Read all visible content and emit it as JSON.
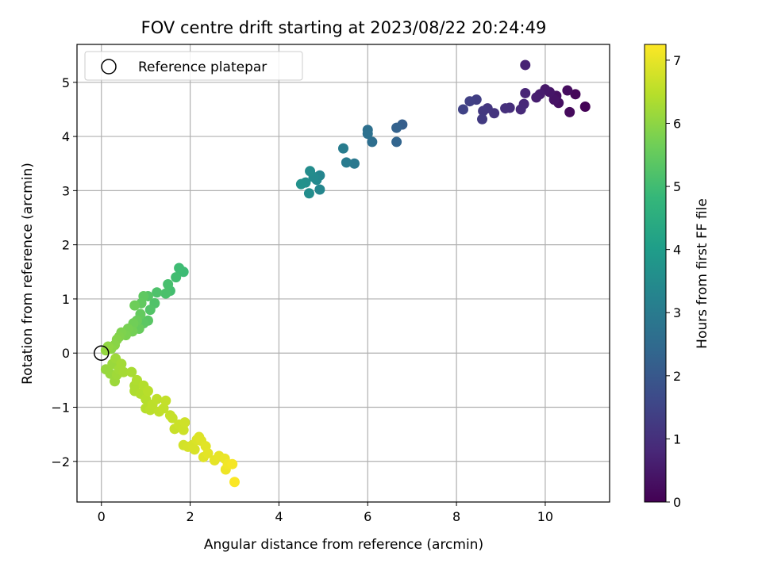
{
  "chart_data": {
    "type": "scatter",
    "title": "FOV centre drift starting at 2023/08/22 20:24:49",
    "xlabel": "Angular distance from reference (arcmin)",
    "ylabel": "Rotation from reference (arcmin)",
    "xlim": [
      -0.55,
      11.45
    ],
    "ylim": [
      -2.75,
      5.7
    ],
    "xticks": [
      0,
      2,
      4,
      6,
      8,
      10
    ],
    "yticks": [
      -2,
      -1,
      0,
      1,
      2,
      3,
      4,
      5
    ],
    "grid": true,
    "legend": {
      "position": "top-left",
      "entries": [
        "Reference platepar"
      ]
    },
    "reference_point": {
      "x": 0,
      "y": 0,
      "label": "Reference platepar"
    },
    "colorbar": {
      "label": "Hours from first FF file",
      "range": [
        0,
        7.25
      ],
      "ticks": [
        0,
        1,
        2,
        3,
        4,
        5,
        6,
        7
      ],
      "colormap": "viridis",
      "colors": [
        "#440154",
        "#482878",
        "#3e4989",
        "#31688e",
        "#26828e",
        "#1f9e89",
        "#35b779",
        "#6ece58",
        "#b5de2b",
        "#fde725"
      ]
    },
    "points": [
      {
        "x": 10.9,
        "y": 4.55,
        "h": 0.05
      },
      {
        "x": 10.68,
        "y": 4.78,
        "h": 0.12
      },
      {
        "x": 10.55,
        "y": 4.45,
        "h": 0.18
      },
      {
        "x": 10.5,
        "y": 4.85,
        "h": 0.22
      },
      {
        "x": 10.3,
        "y": 4.62,
        "h": 0.28
      },
      {
        "x": 10.25,
        "y": 4.75,
        "h": 0.32
      },
      {
        "x": 10.2,
        "y": 4.68,
        "h": 0.38
      },
      {
        "x": 10.1,
        "y": 4.82,
        "h": 0.42
      },
      {
        "x": 10.0,
        "y": 4.87,
        "h": 0.48
      },
      {
        "x": 9.88,
        "y": 4.78,
        "h": 0.55
      },
      {
        "x": 9.8,
        "y": 4.72,
        "h": 0.6
      },
      {
        "x": 9.55,
        "y": 5.32,
        "h": 0.7
      },
      {
        "x": 9.55,
        "y": 4.8,
        "h": 0.75
      },
      {
        "x": 9.52,
        "y": 4.6,
        "h": 0.8
      },
      {
        "x": 9.45,
        "y": 4.5,
        "h": 0.85
      },
      {
        "x": 9.2,
        "y": 4.53,
        "h": 0.95
      },
      {
        "x": 9.1,
        "y": 4.52,
        "h": 1.0
      },
      {
        "x": 8.85,
        "y": 4.43,
        "h": 1.1
      },
      {
        "x": 8.7,
        "y": 4.52,
        "h": 1.15
      },
      {
        "x": 8.6,
        "y": 4.47,
        "h": 1.2
      },
      {
        "x": 8.58,
        "y": 4.32,
        "h": 1.25
      },
      {
        "x": 8.45,
        "y": 4.68,
        "h": 1.35
      },
      {
        "x": 8.3,
        "y": 4.65,
        "h": 1.4
      },
      {
        "x": 8.15,
        "y": 4.5,
        "h": 1.45
      },
      {
        "x": 6.78,
        "y": 4.22,
        "h": 2.15
      },
      {
        "x": 6.65,
        "y": 4.16,
        "h": 2.25
      },
      {
        "x": 6.65,
        "y": 3.9,
        "h": 2.35
      },
      {
        "x": 6.1,
        "y": 3.9,
        "h": 2.6
      },
      {
        "x": 6.0,
        "y": 4.12,
        "h": 2.65
      },
      {
        "x": 6.0,
        "y": 4.05,
        "h": 2.7
      },
      {
        "x": 5.7,
        "y": 3.5,
        "h": 2.9
      },
      {
        "x": 5.52,
        "y": 3.52,
        "h": 3.0
      },
      {
        "x": 5.45,
        "y": 3.78,
        "h": 3.05
      },
      {
        "x": 4.92,
        "y": 3.28,
        "h": 3.3
      },
      {
        "x": 4.92,
        "y": 3.02,
        "h": 3.35
      },
      {
        "x": 4.85,
        "y": 3.2,
        "h": 3.4
      },
      {
        "x": 4.78,
        "y": 3.25,
        "h": 3.45
      },
      {
        "x": 4.7,
        "y": 3.36,
        "h": 3.5
      },
      {
        "x": 4.68,
        "y": 2.95,
        "h": 3.55
      },
      {
        "x": 4.6,
        "y": 3.15,
        "h": 3.6
      },
      {
        "x": 4.5,
        "y": 3.12,
        "h": 3.65
      },
      {
        "x": 1.85,
        "y": 1.5,
        "h": 4.95
      },
      {
        "x": 1.75,
        "y": 1.57,
        "h": 4.98
      },
      {
        "x": 1.68,
        "y": 1.4,
        "h": 5.02
      },
      {
        "x": 1.55,
        "y": 1.15,
        "h": 5.06
      },
      {
        "x": 1.5,
        "y": 1.27,
        "h": 5.1
      },
      {
        "x": 1.45,
        "y": 1.1,
        "h": 5.14
      },
      {
        "x": 1.25,
        "y": 1.12,
        "h": 5.18
      },
      {
        "x": 1.2,
        "y": 0.92,
        "h": 5.22
      },
      {
        "x": 1.1,
        "y": 0.8,
        "h": 5.26
      },
      {
        "x": 1.05,
        "y": 1.05,
        "h": 5.3
      },
      {
        "x": 1.05,
        "y": 0.6,
        "h": 5.34
      },
      {
        "x": 0.95,
        "y": 0.55,
        "h": 5.38
      },
      {
        "x": 0.95,
        "y": 1.05,
        "h": 5.42
      },
      {
        "x": 0.9,
        "y": 0.92,
        "h": 5.46
      },
      {
        "x": 0.88,
        "y": 0.72,
        "h": 5.5
      },
      {
        "x": 0.85,
        "y": 0.45,
        "h": 5.54
      },
      {
        "x": 0.8,
        "y": 0.6,
        "h": 5.58
      },
      {
        "x": 0.75,
        "y": 0.88,
        "h": 5.62
      },
      {
        "x": 0.72,
        "y": 0.55,
        "h": 5.66
      },
      {
        "x": 0.7,
        "y": 0.4,
        "h": 5.7
      },
      {
        "x": 0.6,
        "y": 0.45,
        "h": 5.74
      },
      {
        "x": 0.55,
        "y": 0.33,
        "h": 5.78
      },
      {
        "x": 0.45,
        "y": 0.38,
        "h": 5.82
      },
      {
        "x": 0.4,
        "y": 0.3,
        "h": 5.86
      },
      {
        "x": 0.35,
        "y": 0.25,
        "h": 5.9
      },
      {
        "x": 0.3,
        "y": 0.15,
        "h": 5.94
      },
      {
        "x": 0.22,
        "y": 0.08,
        "h": 5.98
      },
      {
        "x": 0.15,
        "y": 0.12,
        "h": 6.02
      },
      {
        "x": 0.1,
        "y": 0.05,
        "h": 6.06
      },
      {
        "x": 0.1,
        "y": -0.3,
        "h": 6.1
      },
      {
        "x": 0.2,
        "y": -0.38,
        "h": 6.12
      },
      {
        "x": 0.25,
        "y": -0.2,
        "h": 6.14
      },
      {
        "x": 0.3,
        "y": -0.52,
        "h": 6.16
      },
      {
        "x": 0.32,
        "y": -0.1,
        "h": 6.18
      },
      {
        "x": 0.35,
        "y": -0.4,
        "h": 6.2
      },
      {
        "x": 0.4,
        "y": -0.3,
        "h": 6.22
      },
      {
        "x": 0.45,
        "y": -0.2,
        "h": 6.24
      },
      {
        "x": 0.5,
        "y": -0.35,
        "h": 6.26
      },
      {
        "x": 0.68,
        "y": -0.35,
        "h": 6.3
      },
      {
        "x": 0.75,
        "y": -0.6,
        "h": 6.34
      },
      {
        "x": 0.75,
        "y": -0.7,
        "h": 6.36
      },
      {
        "x": 0.8,
        "y": -0.5,
        "h": 6.38
      },
      {
        "x": 0.88,
        "y": -0.75,
        "h": 6.4
      },
      {
        "x": 0.95,
        "y": -0.6,
        "h": 6.42
      },
      {
        "x": 1.0,
        "y": -0.85,
        "h": 6.44
      },
      {
        "x": 1.0,
        "y": -1.02,
        "h": 6.46
      },
      {
        "x": 1.05,
        "y": -0.7,
        "h": 6.48
      },
      {
        "x": 1.1,
        "y": -1.05,
        "h": 6.5
      },
      {
        "x": 1.15,
        "y": -0.95,
        "h": 6.52
      },
      {
        "x": 1.25,
        "y": -0.85,
        "h": 6.54
      },
      {
        "x": 1.3,
        "y": -1.08,
        "h": 6.56
      },
      {
        "x": 1.4,
        "y": -1.02,
        "h": 6.58
      },
      {
        "x": 1.45,
        "y": -0.88,
        "h": 6.6
      },
      {
        "x": 1.55,
        "y": -1.15,
        "h": 6.62
      },
      {
        "x": 1.6,
        "y": -1.2,
        "h": 6.64
      },
      {
        "x": 1.65,
        "y": -1.4,
        "h": 6.66
      },
      {
        "x": 1.75,
        "y": -1.32,
        "h": 6.68
      },
      {
        "x": 1.85,
        "y": -1.42,
        "h": 6.7
      },
      {
        "x": 1.88,
        "y": -1.28,
        "h": 6.72
      },
      {
        "x": 1.85,
        "y": -1.7,
        "h": 6.76
      },
      {
        "x": 1.95,
        "y": -1.73,
        "h": 6.8
      },
      {
        "x": 2.05,
        "y": -1.7,
        "h": 6.82
      },
      {
        "x": 2.1,
        "y": -1.78,
        "h": 6.84
      },
      {
        "x": 2.15,
        "y": -1.6,
        "h": 6.86
      },
      {
        "x": 2.2,
        "y": -1.55,
        "h": 6.88
      },
      {
        "x": 2.25,
        "y": -1.62,
        "h": 6.9
      },
      {
        "x": 2.3,
        "y": -1.92,
        "h": 6.92
      },
      {
        "x": 2.35,
        "y": -1.72,
        "h": 6.94
      },
      {
        "x": 2.4,
        "y": -1.85,
        "h": 6.96
      },
      {
        "x": 2.55,
        "y": -1.98,
        "h": 6.98
      },
      {
        "x": 2.65,
        "y": -1.9,
        "h": 7.0
      },
      {
        "x": 2.78,
        "y": -1.95,
        "h": 7.04
      },
      {
        "x": 2.8,
        "y": -2.15,
        "h": 7.08
      },
      {
        "x": 2.85,
        "y": -2.05,
        "h": 7.12
      },
      {
        "x": 2.95,
        "y": -2.05,
        "h": 7.16
      },
      {
        "x": 3.0,
        "y": -2.38,
        "h": 7.22
      }
    ]
  }
}
